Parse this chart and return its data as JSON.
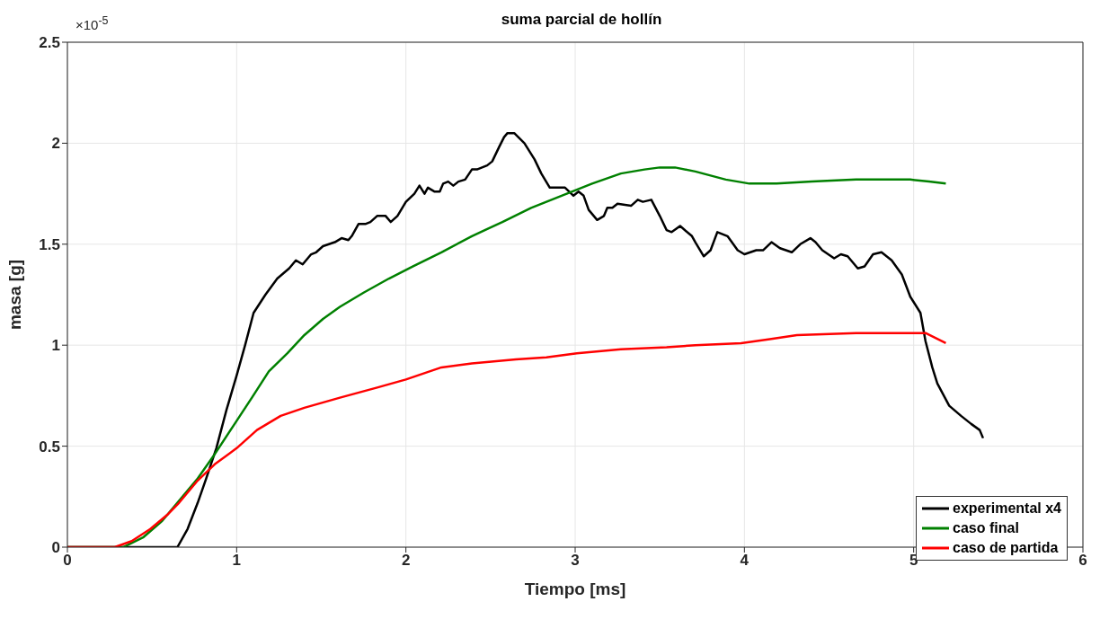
{
  "chart_data": {
    "type": "line",
    "title": "suma parcial de hollín",
    "xlabel": "Tiempo [ms]",
    "ylabel": "masa [g]",
    "annotations": [
      "×10$^{-5}$"
    ],
    "xlim": [
      0,
      6
    ],
    "xticks": [
      0,
      1,
      2,
      3,
      4,
      5,
      6
    ],
    "ylim": [
      0,
      2.5
    ],
    "yticks": [
      0,
      0.5,
      1,
      1.5,
      2,
      2.5
    ],
    "grid": true,
    "legend": "bottom right",
    "marker": "none",
    "line_style": "solid",
    "series": [
      {
        "name": "experimental x4",
        "color": "#000000",
        "x": [
          0,
          0.65,
          0.71,
          0.77,
          0.82,
          0.88,
          0.94,
          1.0,
          1.05,
          1.1,
          1.17,
          1.24,
          1.31,
          1.35,
          1.39,
          1.44,
          1.47,
          1.51,
          1.58,
          1.62,
          1.66,
          1.68,
          1.72,
          1.76,
          1.79,
          1.83,
          1.88,
          1.91,
          1.95,
          2.0,
          2.05,
          2.08,
          2.11,
          2.13,
          2.17,
          2.2,
          2.22,
          2.25,
          2.28,
          2.31,
          2.35,
          2.39,
          2.42,
          2.48,
          2.51,
          2.55,
          2.58,
          2.6,
          2.64,
          2.7,
          2.76,
          2.8,
          2.85,
          2.89,
          2.94,
          2.99,
          3.02,
          3.05,
          3.08,
          3.13,
          3.17,
          3.19,
          3.22,
          3.25,
          3.33,
          3.37,
          3.4,
          3.45,
          3.5,
          3.54,
          3.57,
          3.62,
          3.69,
          3.71,
          3.76,
          3.8,
          3.84,
          3.9,
          3.96,
          4.0,
          4.07,
          4.11,
          4.16,
          4.21,
          4.28,
          4.33,
          4.39,
          4.42,
          4.46,
          4.53,
          4.57,
          4.61,
          4.67,
          4.71,
          4.76,
          4.81,
          4.87,
          4.93,
          4.98,
          5.04,
          5.07,
          5.11,
          5.14,
          5.21,
          5.28,
          5.34,
          5.39,
          5.41
        ],
        "values": [
          0,
          0,
          0.09,
          0.22,
          0.34,
          0.49,
          0.68,
          0.85,
          1.0,
          1.16,
          1.25,
          1.33,
          1.38,
          1.42,
          1.4,
          1.45,
          1.46,
          1.49,
          1.51,
          1.53,
          1.52,
          1.54,
          1.6,
          1.6,
          1.61,
          1.64,
          1.64,
          1.61,
          1.64,
          1.71,
          1.75,
          1.79,
          1.75,
          1.78,
          1.76,
          1.76,
          1.8,
          1.81,
          1.79,
          1.81,
          1.82,
          1.87,
          1.87,
          1.89,
          1.91,
          1.98,
          2.03,
          2.05,
          2.05,
          2.0,
          1.92,
          1.85,
          1.78,
          1.78,
          1.78,
          1.74,
          1.76,
          1.74,
          1.67,
          1.62,
          1.64,
          1.68,
          1.68,
          1.7,
          1.69,
          1.72,
          1.71,
          1.72,
          1.64,
          1.57,
          1.56,
          1.59,
          1.54,
          1.51,
          1.44,
          1.47,
          1.56,
          1.54,
          1.47,
          1.45,
          1.47,
          1.47,
          1.51,
          1.48,
          1.46,
          1.5,
          1.53,
          1.51,
          1.47,
          1.43,
          1.45,
          1.44,
          1.38,
          1.39,
          1.45,
          1.46,
          1.42,
          1.35,
          1.24,
          1.16,
          1.02,
          0.89,
          0.81,
          0.7,
          0.65,
          0.61,
          0.58,
          0.54
        ]
      },
      {
        "name": "caso final",
        "color": "#008000",
        "x": [
          0,
          0.33,
          0.45,
          0.56,
          0.66,
          0.77,
          0.87,
          0.98,
          1.09,
          1.19,
          1.3,
          1.4,
          1.51,
          1.61,
          1.75,
          1.9,
          2.04,
          2.21,
          2.39,
          2.57,
          2.74,
          2.92,
          3.1,
          3.27,
          3.41,
          3.5,
          3.59,
          3.71,
          3.89,
          4.03,
          4.19,
          4.4,
          4.66,
          4.98,
          5.09,
          5.19
        ],
        "values": [
          0,
          0,
          0.05,
          0.13,
          0.23,
          0.34,
          0.46,
          0.6,
          0.74,
          0.87,
          0.96,
          1.05,
          1.13,
          1.19,
          1.26,
          1.33,
          1.39,
          1.46,
          1.54,
          1.61,
          1.68,
          1.74,
          1.8,
          1.85,
          1.87,
          1.88,
          1.88,
          1.86,
          1.82,
          1.8,
          1.8,
          1.81,
          1.82,
          1.82,
          1.81,
          1.8
        ]
      },
      {
        "name": "caso de partida",
        "color": "#ff0000",
        "x": [
          0,
          0.28,
          0.38,
          0.49,
          0.59,
          0.66,
          0.77,
          0.87,
          1.0,
          1.12,
          1.26,
          1.4,
          1.61,
          1.83,
          2.0,
          2.21,
          2.39,
          2.65,
          2.83,
          3.01,
          3.27,
          3.54,
          3.71,
          3.98,
          4.15,
          4.31,
          4.66,
          4.96,
          5.07,
          5.19
        ],
        "values": [
          0,
          0,
          0.03,
          0.09,
          0.16,
          0.22,
          0.33,
          0.41,
          0.49,
          0.58,
          0.65,
          0.69,
          0.74,
          0.79,
          0.83,
          0.89,
          0.91,
          0.93,
          0.94,
          0.96,
          0.98,
          0.99,
          1.0,
          1.01,
          1.03,
          1.05,
          1.06,
          1.06,
          1.06,
          1.01
        ]
      }
    ]
  }
}
